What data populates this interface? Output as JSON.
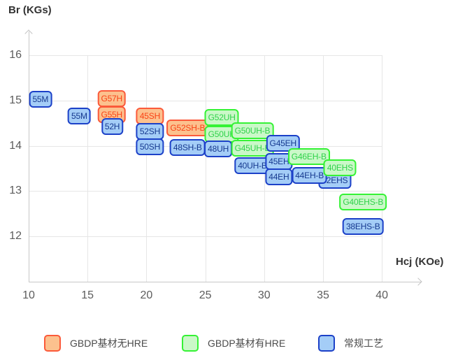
{
  "page": {
    "y_axis_title": "Br (KGs)",
    "x_axis_title": "Hcj (KOe)"
  },
  "colors": {
    "orange": {
      "fill": "#fcc18e",
      "border": "#fb5a3a",
      "text": "#f94316"
    },
    "green": {
      "fill": "#caf8c8",
      "border": "#35f235",
      "text": "#2fd24a"
    },
    "blue": {
      "fill": "#a4cdf7",
      "border": "#1c41c8",
      "text": "#16398f"
    }
  },
  "chart_data": {
    "type": "scatter",
    "title": "",
    "xlabel": "Hcj (KOe)",
    "ylabel": "Br (KGs)",
    "x_ticks": [
      10,
      15,
      20,
      25,
      30,
      35,
      40
    ],
    "y_ticks": [
      16,
      15,
      14,
      13,
      12
    ],
    "xlim": [
      10,
      43.5
    ],
    "ylim": [
      11,
      16.5
    ],
    "grid": true,
    "legend_position": "bottom",
    "series": [
      {
        "name": "GBDP基材无HRE",
        "key": "orange",
        "grades": [
          "G57H",
          "G55H",
          "45SH",
          "G52SH-B"
        ]
      },
      {
        "name": "GBDP基材有HRE",
        "key": "green",
        "grades": [
          "G52UH",
          "G50UH",
          "G50UH-B",
          "G45UH-B",
          "G46EH-B",
          "40EHS",
          "G40EHS-B"
        ]
      },
      {
        "name": "常规工艺",
        "key": "blue",
        "grades": [
          "55M",
          "55M",
          "52H",
          "52SH",
          "50SH",
          "48SH-B",
          "48UH",
          "40UH-B",
          "G45EH",
          "45EH",
          "44EH",
          "42EHS",
          "44EH-B",
          "38EHS-B"
        ]
      }
    ],
    "points": [
      {
        "label": "55M",
        "series": "blue",
        "hcj": 11.0,
        "br": 15.02
      },
      {
        "label": "55M",
        "series": "blue",
        "hcj": 14.3,
        "br": 14.65
      },
      {
        "label": "G57H",
        "series": "orange",
        "hcj": 17.05,
        "br": 15.05
      },
      {
        "label": "G55H",
        "series": "orange",
        "hcj": 17.05,
        "br": 14.68
      },
      {
        "label": "52H",
        "series": "blue",
        "hcj": 17.1,
        "br": 14.42
      },
      {
        "label": "45SH",
        "series": "orange",
        "hcj": 20.3,
        "br": 14.66
      },
      {
        "label": "52SH",
        "series": "blue",
        "hcj": 20.3,
        "br": 14.32
      },
      {
        "label": "50SH",
        "series": "blue",
        "hcj": 20.3,
        "br": 13.98
      },
      {
        "label": "G52SH-B",
        "series": "orange",
        "hcj": 23.5,
        "br": 14.4
      },
      {
        "label": "48SH-B",
        "series": "blue",
        "hcj": 23.5,
        "br": 13.96
      },
      {
        "label": "G52UH",
        "series": "green",
        "hcj": 26.4,
        "br": 14.63
      },
      {
        "label": "G50UH",
        "series": "green",
        "hcj": 26.4,
        "br": 14.26
      },
      {
        "label": "48UH",
        "series": "blue",
        "hcj": 26.1,
        "br": 13.93
      },
      {
        "label": "G50UH-B",
        "series": "green",
        "hcj": 29.0,
        "br": 14.33
      },
      {
        "label": "G45UH-B",
        "series": "green",
        "hcj": 29.0,
        "br": 13.95
      },
      {
        "label": "40UH-B",
        "series": "blue",
        "hcj": 29.0,
        "br": 13.56
      },
      {
        "label": "G45EH",
        "series": "blue",
        "hcj": 31.6,
        "br": 14.06
      },
      {
        "label": "45EH",
        "series": "blue",
        "hcj": 31.25,
        "br": 13.66
      },
      {
        "label": "44EH",
        "series": "blue",
        "hcj": 31.25,
        "br": 13.31
      },
      {
        "label": "42EHS",
        "series": "blue",
        "hcj": 36.0,
        "br": 13.23
      },
      {
        "label": "G46EH-B",
        "series": "green",
        "hcj": 33.8,
        "br": 13.76
      },
      {
        "label": "44EH-B",
        "series": "blue",
        "hcj": 33.85,
        "br": 13.34
      },
      {
        "label": "40EHS",
        "series": "green",
        "hcj": 36.45,
        "br": 13.52
      },
      {
        "label": "G40EHS-B",
        "series": "green",
        "hcj": 38.4,
        "br": 12.75
      },
      {
        "label": "38EHS-B",
        "series": "blue",
        "hcj": 38.4,
        "br": 12.21
      }
    ]
  },
  "legend": {
    "items": [
      {
        "label": "GBDP基材无HRE",
        "key": "orange"
      },
      {
        "label": "GBDP基材有HRE",
        "key": "green"
      },
      {
        "label": "常规工艺",
        "key": "blue"
      }
    ]
  }
}
